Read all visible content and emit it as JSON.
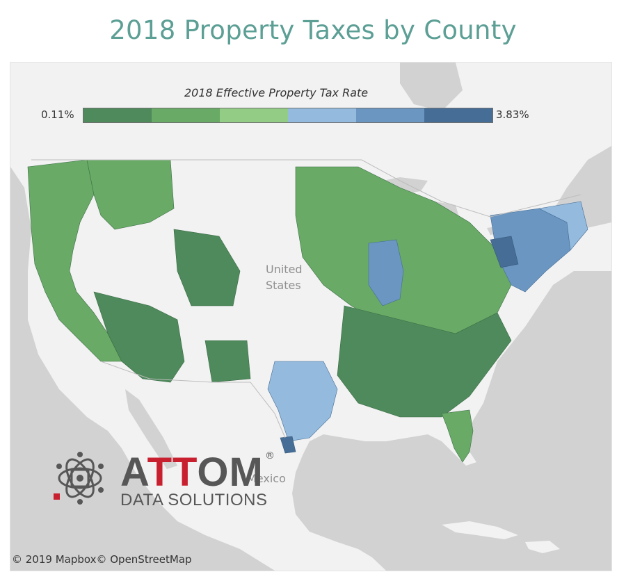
{
  "page": {
    "title": "2018 Property Taxes by County"
  },
  "legend": {
    "title": "2018 Effective Property Tax Rate",
    "min_label": "0.11%",
    "max_label": "3.83%",
    "min_value": 0.11,
    "max_value": 3.83,
    "colors": [
      "#4e8a5b",
      "#68aa66",
      "#93cc85",
      "#94bbdd",
      "#6a96c1",
      "#466d96"
    ]
  },
  "map": {
    "country_label_1": "United",
    "country_label_2": "States",
    "mexico_label": "Mexico",
    "land_color": "#f2f2f2",
    "water_color": "#d2d2d2",
    "data_color_dark": "#4e8a5b",
    "data_color_mid": "#68aa66",
    "data_color_light": "#93cc85",
    "data_color_blue_light": "#94bbdd",
    "data_color_blue_mid": "#6a96c1",
    "data_color_blue_dark": "#466d96",
    "regions": [
      {
        "name": "west-coast",
        "tier": "green"
      },
      {
        "name": "southwest",
        "tier": "green-dark"
      },
      {
        "name": "midwest-east",
        "tier": "green"
      },
      {
        "name": "illinois-region",
        "tier": "blue"
      },
      {
        "name": "northeast",
        "tier": "blue"
      },
      {
        "name": "texas-south",
        "tier": "blue"
      },
      {
        "name": "southeast",
        "tier": "green-dark"
      },
      {
        "name": "florida",
        "tier": "green"
      }
    ]
  },
  "logo": {
    "brand_prefix": "A",
    "brand_highlight": "TT",
    "brand_suffix": "OM",
    "registered": "®",
    "tagline": "DATA SOLUTIONS",
    "accent_color": "#c8202f",
    "text_color": "#575757"
  },
  "attribution": "© 2019 Mapbox© OpenStreetMap"
}
